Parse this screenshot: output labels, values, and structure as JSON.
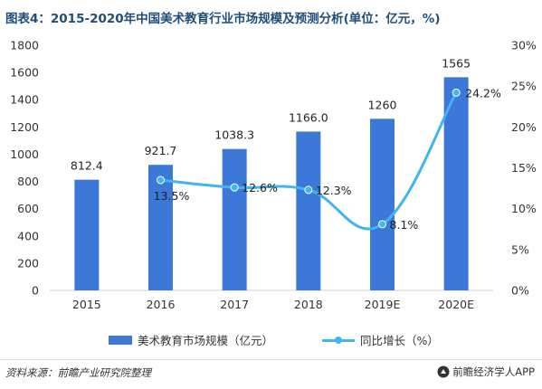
{
  "title": "图表4：2015-2020年中国美术教育行业市场规模及预测分析(单位：亿元，%)",
  "chart_data": {
    "type": "bar",
    "categories": [
      "2015",
      "2016",
      "2017",
      "2018",
      "2019E",
      "2020E"
    ],
    "series": [
      {
        "name": "美术教育市场规模（亿元）",
        "type": "bar",
        "axis": "left",
        "color": "#3b78d8",
        "values": [
          812.4,
          921.7,
          1038.3,
          1166.0,
          1260,
          1565
        ],
        "labels": [
          "812.4",
          "921.7",
          "1038.3",
          "1166.0",
          "1260",
          "1565"
        ]
      },
      {
        "name": "同比增长（%）",
        "type": "line",
        "axis": "right",
        "color": "#42b4f0",
        "smooth": true,
        "values": [
          null,
          13.5,
          12.6,
          12.3,
          8.1,
          24.2
        ],
        "labels": [
          "",
          "13.5%",
          "12.6%",
          "12.3%",
          "8.1%",
          "24.2%"
        ]
      }
    ],
    "left_axis": {
      "ylim": [
        0,
        1800
      ],
      "ticks": [
        0,
        200,
        400,
        600,
        800,
        1000,
        1200,
        1400,
        1600,
        1800
      ],
      "tick_labels": [
        "0",
        "200",
        "400",
        "600",
        "800",
        "1000",
        "1200",
        "1400",
        "1600",
        "1800"
      ]
    },
    "right_axis": {
      "ylim": [
        0,
        30
      ],
      "ticks": [
        0,
        5,
        10,
        15,
        20,
        25,
        30
      ],
      "tick_labels": [
        "0%",
        "5%",
        "10%",
        "15%",
        "20%",
        "25%",
        "30%"
      ]
    },
    "grid": false,
    "legend": "bottom"
  },
  "legend": {
    "bar_label": "美术教育市场规模（亿元）",
    "line_label": "同比增长（%）"
  },
  "footer": {
    "source": "资料来源：前瞻产业研究院整理",
    "brand": "前瞻经济学人APP"
  },
  "colors": {
    "bar": "#3b78d8",
    "line": "#42b4f0",
    "title": "#1f4e79"
  }
}
